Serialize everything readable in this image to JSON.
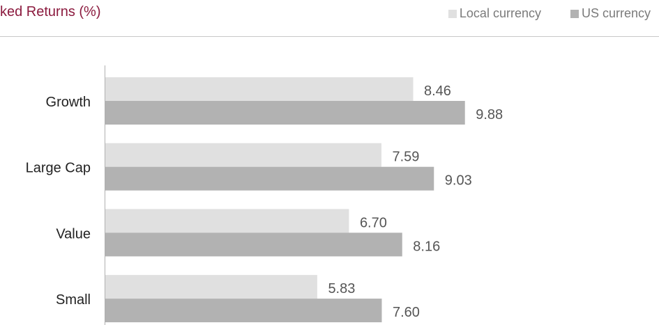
{
  "title": "ked Returns (%)",
  "legend": [
    {
      "label": "Local currency",
      "color": "#e0e0e0"
    },
    {
      "label": "US currency",
      "color": "#b2b2b2"
    }
  ],
  "chart_data": {
    "type": "bar",
    "orientation": "horizontal",
    "title": "ked Returns (%)",
    "categories": [
      "Growth",
      "Large Cap",
      "Value",
      "Small"
    ],
    "series": [
      {
        "name": "Local currency",
        "color": "#e0e0e0",
        "values": [
          8.46,
          7.59,
          6.7,
          5.83
        ]
      },
      {
        "name": "US currency",
        "color": "#b2b2b2",
        "values": [
          9.88,
          9.03,
          8.16,
          7.6
        ]
      }
    ],
    "xlim": [
      0,
      12
    ],
    "grid": false,
    "legend_position": "top-right",
    "data_labels_decimals": 2
  }
}
